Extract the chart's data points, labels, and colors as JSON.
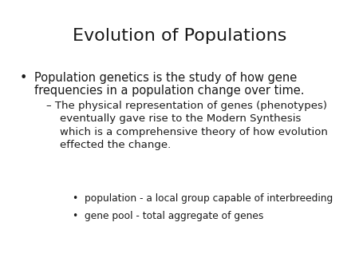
{
  "title": "Evolution of Populations",
  "title_fontsize": 16,
  "background_color": "#ffffff",
  "text_color": "#1a1a1a",
  "bullet1_line1": "Population genetics is the study of how gene",
  "bullet1_line2": "frequencies in a population change over time.",
  "bullet1_fontsize": 10.5,
  "dash_line1": "– The physical representation of genes (phenotypes)",
  "dash_line2": "    eventually gave rise to the Modern Synthesis",
  "dash_line3": "    which is a comprehensive theory of how evolution",
  "dash_line4": "    effected the change.",
  "dash_fontsize": 9.5,
  "sub1": "population - a local group capable of interbreeding",
  "sub2": "gene pool - total aggregate of genes",
  "sub_fontsize": 8.8
}
